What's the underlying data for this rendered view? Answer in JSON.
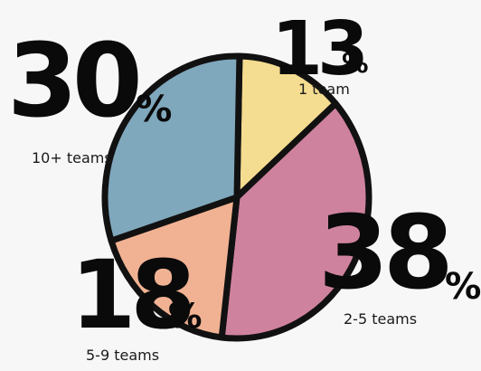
{
  "chart_data": {
    "type": "pie",
    "categories": [
      "1 team",
      "2-5 teams",
      "5-9 teams",
      "10+ teams"
    ],
    "values": [
      13,
      38,
      18,
      30
    ],
    "unit": "%",
    "colors": [
      "#f4dc90",
      "#cf829e",
      "#f1b293",
      "#80a8bd"
    ]
  }
}
